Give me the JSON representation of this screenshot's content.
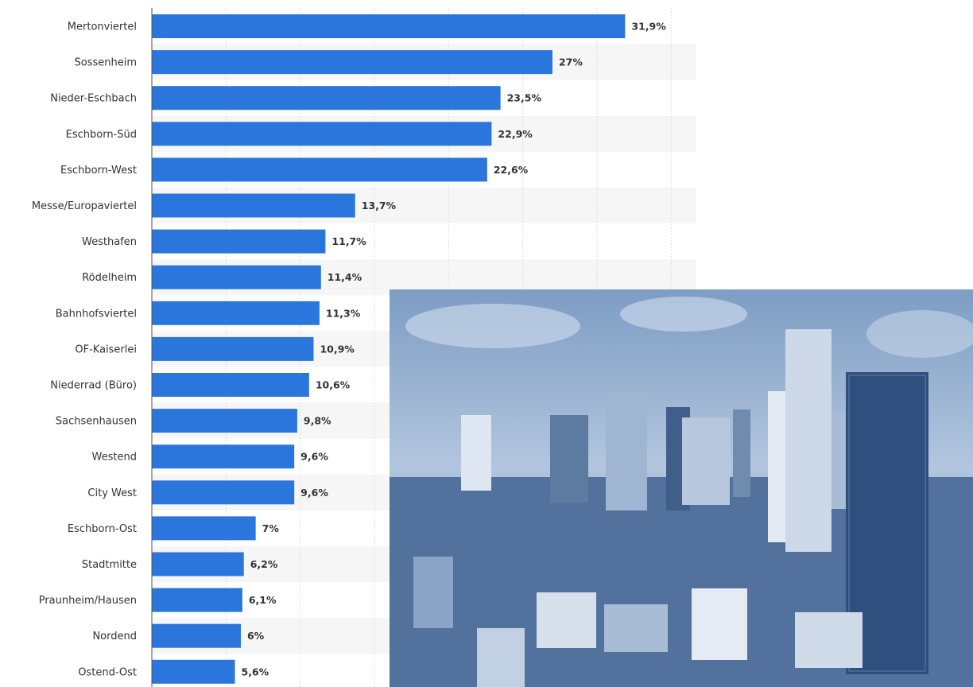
{
  "chart_data": {
    "type": "barh",
    "categories": [
      "Mertonviertel",
      "Sossenheim",
      "Nieder-Eschbach",
      "Eschborn-Süd",
      "Eschborn-West",
      "Messe/Europaviertel",
      "Westhafen",
      "Rödelheim",
      "Bahnhofsviertel",
      "OF-Kaiserlei",
      "Niederrad (Büro)",
      "Sachsenhausen",
      "Westend",
      "City West",
      "Eschborn-Ost",
      "Stadtmitte",
      "Praunheim/Hausen",
      "Nordend",
      "Ostend-Ost"
    ],
    "values": [
      31.9,
      27,
      23.5,
      22.9,
      22.6,
      13.7,
      11.7,
      11.4,
      11.3,
      10.9,
      10.6,
      9.8,
      9.6,
      9.6,
      7,
      6.2,
      6.1,
      6,
      5.6
    ],
    "value_labels": [
      "31,9%",
      "27%",
      "23,5%",
      "22,9%",
      "22,6%",
      "13,7%",
      "11,7%",
      "11,4%",
      "11,3%",
      "10,9%",
      "10,6%",
      "9,8%",
      "9,6%",
      "9,6%",
      "7%",
      "6,2%",
      "6,1%",
      "6%",
      "5,6%"
    ],
    "color": "#2a76dd",
    "xlim": [
      0,
      36.7
    ],
    "xticks": [
      0,
      5,
      10,
      15,
      20,
      25,
      30,
      35
    ],
    "grid": true
  }
}
